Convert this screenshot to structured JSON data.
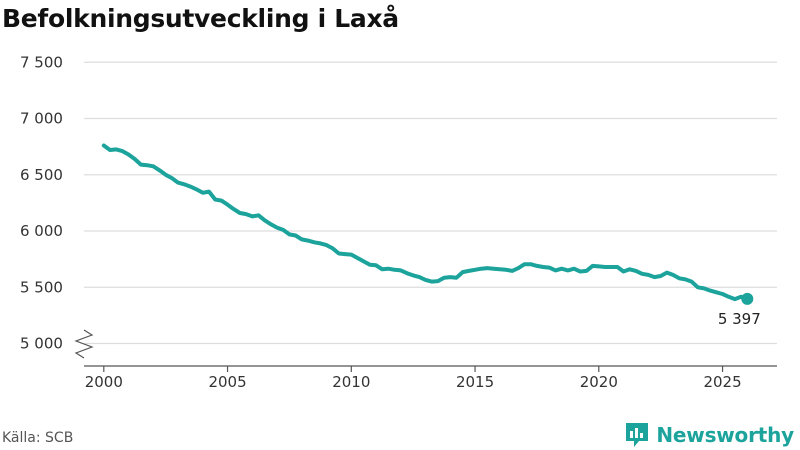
{
  "title": "Befolkningsutveckling i Laxå",
  "source": "Källa: SCB",
  "brand": {
    "name": "Newsworthy",
    "icon": "newsworthy-logo-icon"
  },
  "colors": {
    "line": "#1ba39c",
    "grid": "#dddddd",
    "axis": "#555555",
    "brand": "#1ba39c"
  },
  "chart_data": {
    "type": "line",
    "title": "Befolkningsutveckling i Laxå",
    "xlabel": "",
    "ylabel": "",
    "xlim": [
      1999.2,
      2027.2
    ],
    "ylim": [
      4800,
      7600
    ],
    "y_axis_break": true,
    "grid": "horizontal",
    "x_ticks": [
      {
        "value": 2000,
        "label": "2000"
      },
      {
        "value": 2005,
        "label": "2005"
      },
      {
        "value": 2010,
        "label": "2010"
      },
      {
        "value": 2015,
        "label": "2015"
      },
      {
        "value": 2020,
        "label": "2020"
      },
      {
        "value": 2025,
        "label": "2025"
      }
    ],
    "y_ticks": [
      {
        "value": 5000,
        "label": "5 000"
      },
      {
        "value": 5500,
        "label": "5 500"
      },
      {
        "value": 6000,
        "label": "6 000"
      },
      {
        "value": 6500,
        "label": "6 500"
      },
      {
        "value": 7000,
        "label": "7 000"
      },
      {
        "value": 7500,
        "label": "7 500"
      }
    ],
    "series": [
      {
        "points": [
          [
            2000.0,
            6760
          ],
          [
            2000.25,
            6720
          ],
          [
            2000.5,
            6725
          ],
          [
            2000.75,
            6710
          ],
          [
            2001.0,
            6680
          ],
          [
            2001.25,
            6640
          ],
          [
            2001.5,
            6590
          ],
          [
            2001.75,
            6585
          ],
          [
            2002.0,
            6575
          ],
          [
            2002.25,
            6540
          ],
          [
            2002.5,
            6500
          ],
          [
            2002.75,
            6470
          ],
          [
            2003.0,
            6430
          ],
          [
            2003.25,
            6415
          ],
          [
            2003.5,
            6395
          ],
          [
            2003.75,
            6370
          ],
          [
            2004.0,
            6340
          ],
          [
            2004.25,
            6350
          ],
          [
            2004.5,
            6280
          ],
          [
            2004.75,
            6270
          ],
          [
            2005.0,
            6235
          ],
          [
            2005.25,
            6195
          ],
          [
            2005.5,
            6160
          ],
          [
            2005.75,
            6150
          ],
          [
            2006.0,
            6130
          ],
          [
            2006.25,
            6140
          ],
          [
            2006.5,
            6095
          ],
          [
            2006.75,
            6060
          ],
          [
            2007.0,
            6030
          ],
          [
            2007.25,
            6010
          ],
          [
            2007.5,
            5970
          ],
          [
            2007.75,
            5960
          ],
          [
            2008.0,
            5925
          ],
          [
            2008.25,
            5915
          ],
          [
            2008.5,
            5900
          ],
          [
            2008.75,
            5890
          ],
          [
            2009.0,
            5875
          ],
          [
            2009.25,
            5845
          ],
          [
            2009.5,
            5800
          ],
          [
            2009.75,
            5795
          ],
          [
            2010.0,
            5790
          ],
          [
            2010.25,
            5760
          ],
          [
            2010.5,
            5730
          ],
          [
            2010.75,
            5700
          ],
          [
            2011.0,
            5695
          ],
          [
            2011.25,
            5660
          ],
          [
            2011.5,
            5665
          ],
          [
            2011.75,
            5655
          ],
          [
            2012.0,
            5650
          ],
          [
            2012.25,
            5625
          ],
          [
            2012.5,
            5605
          ],
          [
            2012.75,
            5590
          ],
          [
            2013.0,
            5565
          ],
          [
            2013.25,
            5550
          ],
          [
            2013.5,
            5555
          ],
          [
            2013.75,
            5585
          ],
          [
            2014.0,
            5590
          ],
          [
            2014.25,
            5585
          ],
          [
            2014.5,
            5635
          ],
          [
            2014.75,
            5645
          ],
          [
            2015.0,
            5655
          ],
          [
            2015.25,
            5665
          ],
          [
            2015.5,
            5670
          ],
          [
            2015.75,
            5665
          ],
          [
            2016.0,
            5660
          ],
          [
            2016.25,
            5655
          ],
          [
            2016.5,
            5645
          ],
          [
            2016.75,
            5670
          ],
          [
            2017.0,
            5705
          ],
          [
            2017.25,
            5705
          ],
          [
            2017.5,
            5690
          ],
          [
            2017.75,
            5680
          ],
          [
            2018.0,
            5675
          ],
          [
            2018.25,
            5650
          ],
          [
            2018.5,
            5665
          ],
          [
            2018.75,
            5650
          ],
          [
            2019.0,
            5665
          ],
          [
            2019.25,
            5640
          ],
          [
            2019.5,
            5645
          ],
          [
            2019.75,
            5690
          ],
          [
            2020.0,
            5685
          ],
          [
            2020.25,
            5680
          ],
          [
            2020.5,
            5680
          ],
          [
            2020.75,
            5680
          ],
          [
            2021.0,
            5640
          ],
          [
            2021.25,
            5660
          ],
          [
            2021.5,
            5645
          ],
          [
            2021.75,
            5620
          ],
          [
            2022.0,
            5610
          ],
          [
            2022.25,
            5590
          ],
          [
            2022.5,
            5600
          ],
          [
            2022.75,
            5630
          ],
          [
            2023.0,
            5610
          ],
          [
            2023.25,
            5580
          ],
          [
            2023.5,
            5570
          ],
          [
            2023.75,
            5550
          ],
          [
            2024.0,
            5500
          ],
          [
            2024.25,
            5490
          ],
          [
            2024.5,
            5470
          ],
          [
            2024.75,
            5455
          ],
          [
            2025.0,
            5440
          ],
          [
            2025.25,
            5415
          ],
          [
            2025.5,
            5395
          ],
          [
            2025.75,
            5415
          ],
          [
            2026.0,
            5397
          ]
        ],
        "end_label": "5 397"
      }
    ]
  }
}
